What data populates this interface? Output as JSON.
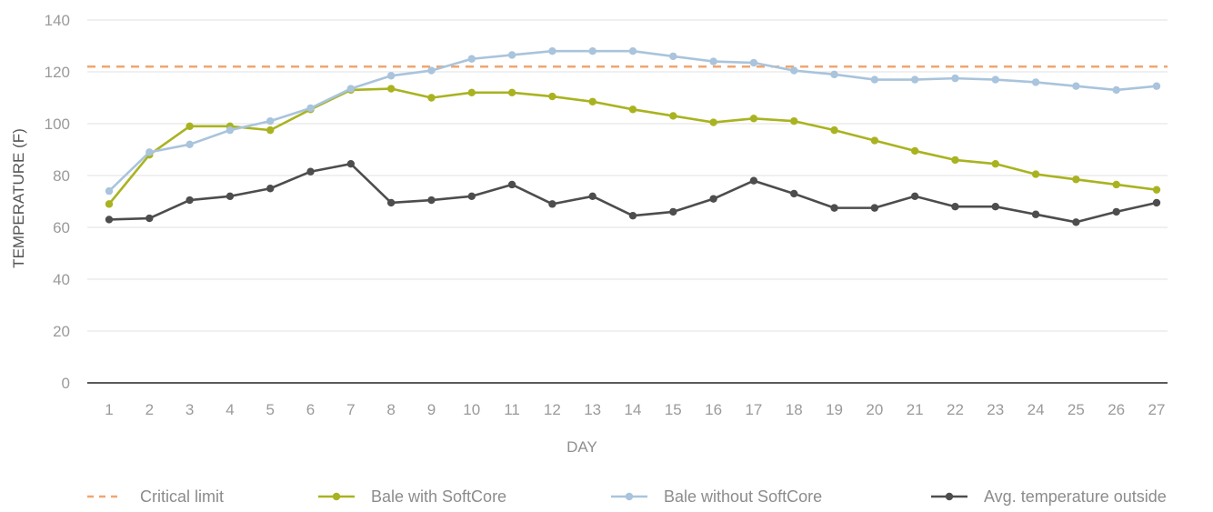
{
  "chart_data": {
    "type": "line",
    "title": "",
    "xlabel": "DAY",
    "ylabel": "TEMPERATURE (F)",
    "ylim": [
      0,
      140
    ],
    "y_ticks": [
      0,
      20,
      40,
      60,
      80,
      100,
      120,
      140
    ],
    "grid": true,
    "legend_position": "bottom",
    "categories": [
      "1",
      "2",
      "3",
      "4",
      "5",
      "6",
      "7",
      "8",
      "9",
      "10",
      "11",
      "12",
      "13",
      "14",
      "15",
      "16",
      "17",
      "18",
      "19",
      "20",
      "21",
      "22",
      "23",
      "24",
      "25",
      "26",
      "27"
    ],
    "critical_limit": {
      "name": "Critical limit",
      "value": 122,
      "color": "#f0a570",
      "style": "dashed"
    },
    "series": [
      {
        "name": "Bale with SoftCore",
        "color": "#a9b320",
        "values": [
          69,
          88,
          99,
          99,
          97.5,
          105.5,
          113,
          113.5,
          110,
          112,
          112,
          110.5,
          108.5,
          105.5,
          103,
          100.5,
          102,
          101,
          97.5,
          93.5,
          89.5,
          86,
          84.5,
          80.5,
          78.5,
          76.5,
          74.5
        ]
      },
      {
        "name": "Bale without SoftCore",
        "color": "#a9c4dc",
        "values": [
          74,
          89,
          92,
          97.5,
          101,
          106,
          113.5,
          118.5,
          120.5,
          125,
          126.5,
          128,
          128,
          128,
          126,
          124,
          123.5,
          120.5,
          119,
          117,
          117,
          117.5,
          117,
          116,
          114.5,
          113,
          114.5
        ]
      },
      {
        "name": "Avg. temperature outside",
        "color": "#4d4d4d",
        "values": [
          63,
          63.5,
          70.5,
          72,
          75,
          81.5,
          84.5,
          69.5,
          70.5,
          72,
          76.5,
          69,
          72,
          64.5,
          66,
          71,
          78,
          73,
          67.5,
          67.5,
          72,
          68,
          68,
          65,
          62,
          66,
          69.5
        ]
      }
    ]
  }
}
